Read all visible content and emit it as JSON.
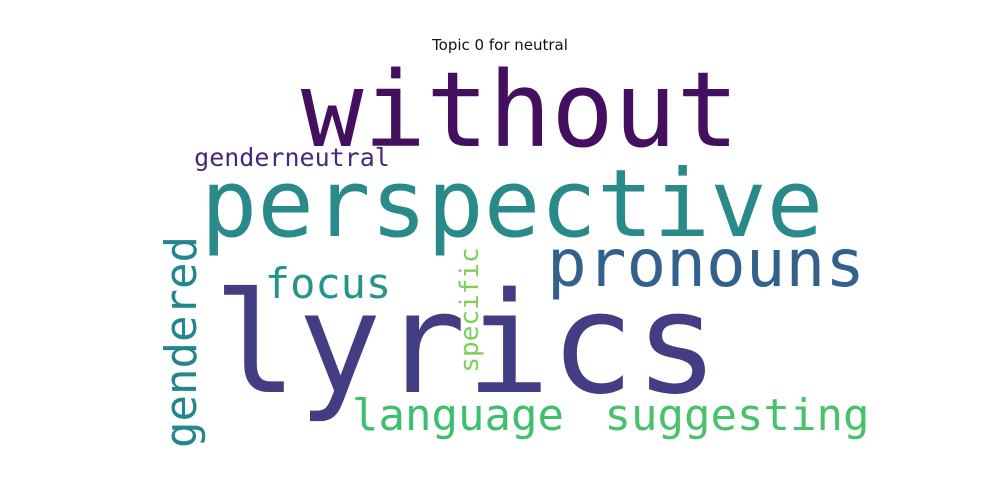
{
  "title": "Topic 0 for neutral",
  "words": [
    {
      "id": "without",
      "text": "without",
      "color": "#440f5e",
      "rotated": false
    },
    {
      "id": "perspective",
      "text": "perspective",
      "color": "#2a8a8a",
      "rotated": false
    },
    {
      "id": "lyrics",
      "text": "lyrics",
      "color": "#433d84",
      "rotated": false
    },
    {
      "id": "pronouns",
      "text": "pronouns",
      "color": "#32618d",
      "rotated": false
    },
    {
      "id": "genderneutral",
      "text": "genderneutral",
      "color": "#482878",
      "rotated": false
    },
    {
      "id": "focus",
      "text": "focus",
      "color": "#25948c",
      "rotated": false
    },
    {
      "id": "gendered",
      "text": "gendered",
      "color": "#23868c",
      "rotated": true
    },
    {
      "id": "specific",
      "text": "specific",
      "color": "#7dcf5a",
      "rotated": true
    },
    {
      "id": "language",
      "text": "language",
      "color": "#3dbf6f",
      "rotated": false
    },
    {
      "id": "suggesting",
      "text": "suggesting",
      "color": "#49c16b",
      "rotated": false
    }
  ]
}
